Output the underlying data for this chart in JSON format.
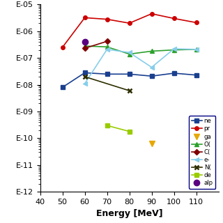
{
  "energy_ne": [
    50,
    60,
    70,
    80,
    90,
    100,
    110
  ],
  "values_ne": [
    8e-09,
    2.8e-08,
    2.5e-08,
    2.5e-08,
    2.1e-08,
    2.7e-08,
    2.3e-08
  ],
  "energy_pr": [
    50,
    60,
    70,
    80,
    90,
    100,
    110
  ],
  "values_pr": [
    2.5e-07,
    3.2e-06,
    2.8e-06,
    2e-06,
    4.5e-06,
    3e-06,
    2.1e-06
  ],
  "energy_ga": [
    90
  ],
  "values_ga": [
    6.5e-11
  ],
  "energy_O": [
    60,
    70,
    80,
    90,
    100,
    110
  ],
  "values_O": [
    2.8e-07,
    2.6e-07,
    1.4e-07,
    1.8e-07,
    2e-07,
    2.1e-07
  ],
  "energy_C": [
    60,
    70
  ],
  "values_C": [
    2.3e-07,
    4.2e-07
  ],
  "energy_e": [
    60,
    70,
    80,
    90,
    100,
    110
  ],
  "values_e": [
    1.1e-08,
    2.1e-07,
    1.6e-07,
    4.5e-08,
    2.2e-07,
    2.1e-07
  ],
  "energy_N": [
    60,
    80
  ],
  "values_N": [
    2e-08,
    6e-09
  ],
  "energy_de": [
    70,
    80
  ],
  "values_de": [
    3e-10,
    1.8e-10
  ],
  "energy_al": [
    60
  ],
  "values_al": [
    4e-07
  ],
  "xlabel": "Energy [MeV]",
  "xlim": [
    40,
    120
  ],
  "ylim_log_min": -12,
  "ylim_log_max": -5,
  "colors": {
    "ne": "#1a3f8f",
    "pr": "#cc0000",
    "ga": "#e6a800",
    "O": "#2ca02c",
    "C": "#7f0000",
    "e": "#87ceeb",
    "N": "#2d2d00",
    "de": "#99cc00",
    "al": "#5a0080"
  },
  "markers": {
    "ne": "s",
    "pr": "o",
    "ga": "v",
    "O": "^",
    "C": "D",
    "e": "<",
    "N": "x",
    "de": "s",
    "al": "o"
  },
  "legend_labels": [
    "ne",
    "pr",
    "ga",
    "O(",
    "C(",
    "e-",
    "N(",
    "de",
    "alp"
  ]
}
